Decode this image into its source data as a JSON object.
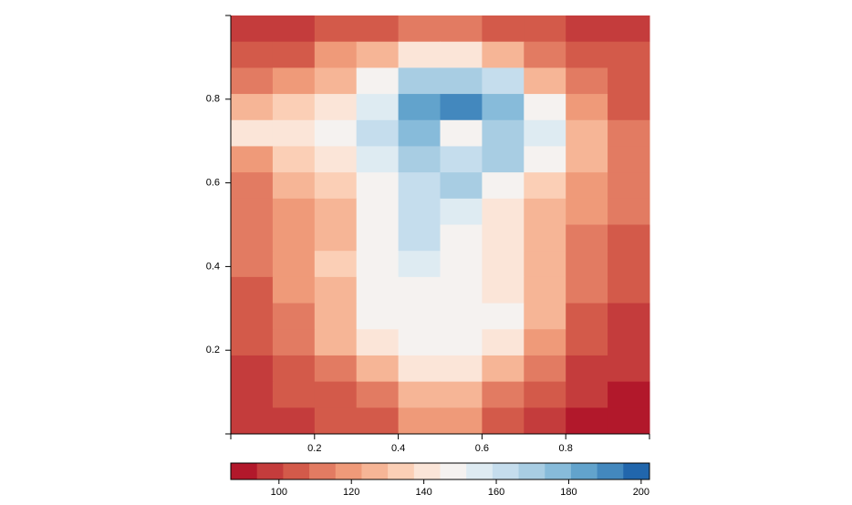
{
  "chart_data": {
    "type": "heatmap",
    "xlim": [
      0,
      1
    ],
    "ylim": [
      0,
      1
    ],
    "xticks": [
      0.2,
      0.4,
      0.6,
      0.8
    ],
    "yticks": [
      0.2,
      0.4,
      0.6,
      0.8
    ],
    "z": [
      [
        100,
        100,
        103,
        108,
        112,
        112,
        108,
        103,
        100,
        100
      ],
      [
        103,
        108,
        118,
        130,
        138,
        140,
        130,
        115,
        105,
        102
      ],
      [
        110,
        120,
        130,
        148,
        170,
        172,
        160,
        130,
        112,
        105
      ],
      [
        125,
        135,
        140,
        155,
        185,
        190,
        175,
        145,
        120,
        108
      ],
      [
        140,
        140,
        145,
        160,
        175,
        150,
        170,
        155,
        130,
        115
      ],
      [
        120,
        135,
        140,
        155,
        170,
        160,
        168,
        145,
        125,
        110
      ],
      [
        115,
        125,
        135,
        150,
        165,
        170,
        150,
        135,
        120,
        110
      ],
      [
        110,
        120,
        130,
        145,
        160,
        155,
        140,
        130,
        120,
        110
      ],
      [
        110,
        120,
        130,
        145,
        165,
        150,
        140,
        125,
        115,
        108
      ],
      [
        110,
        120,
        132,
        145,
        155,
        150,
        140,
        130,
        115,
        105
      ],
      [
        108,
        118,
        130,
        145,
        150,
        148,
        140,
        130,
        110,
        103
      ],
      [
        105,
        115,
        128,
        145,
        150,
        150,
        145,
        128,
        108,
        100
      ],
      [
        102,
        110,
        125,
        140,
        150,
        150,
        138,
        120,
        103,
        97
      ],
      [
        100,
        105,
        115,
        130,
        140,
        138,
        125,
        110,
        100,
        95
      ],
      [
        100,
        103,
        108,
        115,
        125,
        125,
        115,
        103,
        97,
        92
      ],
      [
        100,
        100,
        103,
        108,
        118,
        120,
        108,
        98,
        92,
        88
      ]
    ],
    "zlim": [
      86.7,
      202.3
    ],
    "zticks": [
      100,
      120,
      140,
      160,
      180,
      200
    ],
    "colors": [
      "#b2182b",
      "#c43c3c",
      "#d35a4a",
      "#e27b62",
      "#ef9a79",
      "#f6b596",
      "#fbcfb6",
      "#fbe5d8",
      "#f5f2f0",
      "#deebf2",
      "#c5dded",
      "#a8cde3",
      "#87bbda",
      "#62a3cc",
      "#4388be",
      "#2166ac"
    ]
  }
}
